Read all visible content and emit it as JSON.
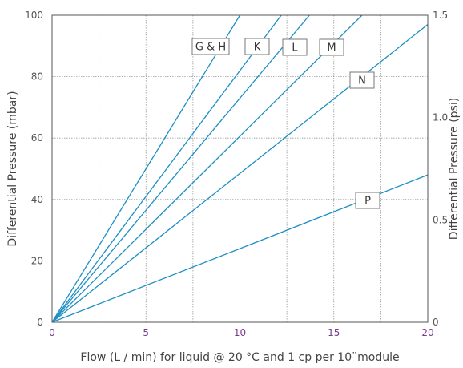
{
  "chart_data": {
    "type": "line",
    "xlabel": "Flow (L / min) for liquid @ 20 °C and 1 cp per 10¨module",
    "ylabel": "Differential Pressure (mbar)",
    "y2label": "Differential Pressure (psi)",
    "xlim": [
      0,
      20
    ],
    "ylim": [
      0,
      100
    ],
    "y2lim": [
      0,
      1.5
    ],
    "xticks": [
      "0",
      "5",
      "10",
      "15",
      "20"
    ],
    "yticks": [
      "0",
      "20",
      "40",
      "60",
      "80",
      "100"
    ],
    "y2ticks": [
      "0",
      "0.5",
      "1.0",
      "1.5"
    ],
    "grid": true,
    "line_color": "#1d8fc3",
    "series": [
      {
        "name": "G & H",
        "x": [
          0,
          10.0
        ],
        "y": [
          0,
          100
        ]
      },
      {
        "name": "K",
        "x": [
          0,
          12.2
        ],
        "y": [
          0,
          100
        ]
      },
      {
        "name": "L",
        "x": [
          0,
          13.7
        ],
        "y": [
          0,
          100
        ]
      },
      {
        "name": "M",
        "x": [
          0,
          16.5
        ],
        "y": [
          0,
          100
        ]
      },
      {
        "name": "N",
        "x": [
          0,
          20
        ],
        "y": [
          0,
          97
        ]
      },
      {
        "name": "P",
        "x": [
          0,
          20
        ],
        "y": [
          0,
          48
        ]
      }
    ]
  }
}
